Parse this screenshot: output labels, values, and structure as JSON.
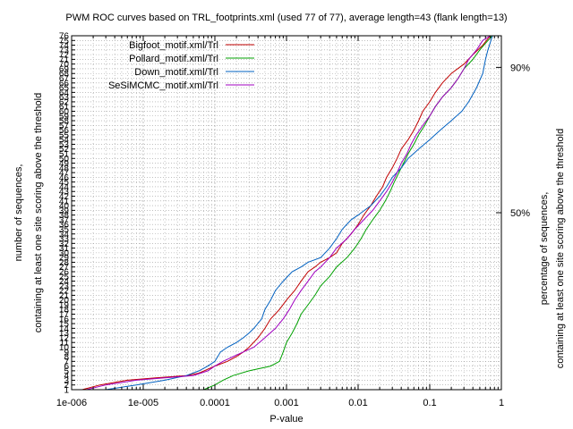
{
  "chart_data": {
    "type": "line",
    "title": "PWM ROC curves based on TRL_footprints.xml (used 77 of 77), average length=43 (flank length=13)",
    "xlabel": "P-value",
    "ylabel_line1": "number of sequences,",
    "ylabel_line2": "containing at least one site scoring above the threshold",
    "y2label_line1": "percentage of sequences,",
    "y2label_line2": "containing at least one site scoring above the threshold",
    "x_scale": "log",
    "xlim": [
      1e-06,
      1
    ],
    "ylim": [
      1,
      76
    ],
    "x_ticks": [
      "1e-006",
      "1e-005",
      "0.0001",
      "0.001",
      "0.01",
      "0.1",
      "1"
    ],
    "y_ticks": [
      "1",
      "2",
      "3",
      "4",
      "5",
      "6",
      "7",
      "8",
      "9",
      "10",
      "11",
      "12",
      "13",
      "14",
      "15",
      "16",
      "17",
      "18",
      "19",
      "20",
      "21",
      "22",
      "23",
      "24",
      "25",
      "26",
      "27",
      "28",
      "29",
      "30",
      "31",
      "32",
      "33",
      "34",
      "35",
      "36",
      "37",
      "38",
      "39",
      "40",
      "41",
      "42",
      "43",
      "44",
      "45",
      "46",
      "47",
      "48",
      "49",
      "50",
      "51",
      "52",
      "53",
      "54",
      "55",
      "56",
      "57",
      "58",
      "59",
      "60",
      "61",
      "62",
      "63",
      "64",
      "65",
      "66",
      "67",
      "68",
      "69",
      "70",
      "71",
      "72",
      "73",
      "74",
      "75",
      "76"
    ],
    "y2_ticks": [
      {
        "label": "50%",
        "value": 38.5
      },
      {
        "label": "90%",
        "value": 69.3
      }
    ],
    "grid": true,
    "legend_position": "top-left",
    "series": [
      {
        "name": "Bigfoot_motif.xml/Trl",
        "color": "#c00000",
        "points": [
          [
            1.4e-06,
            1
          ],
          [
            2.5e-06,
            2
          ],
          [
            6e-06,
            3
          ],
          [
            1.5e-05,
            3.5
          ],
          [
            4e-05,
            4
          ],
          [
            6e-05,
            4.5
          ],
          [
            0.0001,
            6
          ],
          [
            0.00015,
            7
          ],
          [
            0.0002,
            8
          ],
          [
            0.00025,
            9
          ],
          [
            0.0003,
            10
          ],
          [
            0.0004,
            12
          ],
          [
            0.0005,
            14
          ],
          [
            0.0006,
            16
          ],
          [
            0.0008,
            18
          ],
          [
            0.001,
            20
          ],
          [
            0.0013,
            22
          ],
          [
            0.0016,
            24
          ],
          [
            0.002,
            26
          ],
          [
            0.0025,
            27
          ],
          [
            0.003,
            28
          ],
          [
            0.004,
            29
          ],
          [
            0.005,
            30
          ],
          [
            0.006,
            32
          ],
          [
            0.008,
            34
          ],
          [
            0.01,
            36
          ],
          [
            0.012,
            38
          ],
          [
            0.015,
            40
          ],
          [
            0.018,
            42
          ],
          [
            0.022,
            44
          ],
          [
            0.025,
            46
          ],
          [
            0.03,
            48
          ],
          [
            0.035,
            50
          ],
          [
            0.04,
            52
          ],
          [
            0.05,
            54
          ],
          [
            0.06,
            56
          ],
          [
            0.07,
            58
          ],
          [
            0.08,
            60
          ],
          [
            0.1,
            62
          ],
          [
            0.12,
            64
          ],
          [
            0.15,
            66
          ],
          [
            0.2,
            68
          ],
          [
            0.3,
            70
          ],
          [
            0.4,
            72
          ],
          [
            0.55,
            74
          ],
          [
            0.7,
            76
          ]
        ]
      },
      {
        "name": "Pollard_motif.xml/Trl",
        "color": "#00a000",
        "points": [
          [
            7e-05,
            1
          ],
          [
            0.0001,
            2
          ],
          [
            0.00013,
            3
          ],
          [
            0.00018,
            4
          ],
          [
            0.0003,
            5
          ],
          [
            0.0006,
            6
          ],
          [
            0.0008,
            7
          ],
          [
            0.0009,
            9
          ],
          [
            0.001,
            11
          ],
          [
            0.0012,
            13
          ],
          [
            0.0014,
            15
          ],
          [
            0.0016,
            17
          ],
          [
            0.002,
            19
          ],
          [
            0.0025,
            21
          ],
          [
            0.003,
            23
          ],
          [
            0.004,
            25
          ],
          [
            0.005,
            27
          ],
          [
            0.007,
            29
          ],
          [
            0.009,
            31
          ],
          [
            0.011,
            33
          ],
          [
            0.013,
            35
          ],
          [
            0.016,
            37
          ],
          [
            0.02,
            39
          ],
          [
            0.024,
            41
          ],
          [
            0.028,
            43
          ],
          [
            0.032,
            45
          ],
          [
            0.037,
            47
          ],
          [
            0.043,
            49
          ],
          [
            0.05,
            51
          ],
          [
            0.06,
            53
          ],
          [
            0.07,
            55
          ],
          [
            0.085,
            57
          ],
          [
            0.1,
            59
          ],
          [
            0.12,
            61
          ],
          [
            0.15,
            63
          ],
          [
            0.2,
            65
          ],
          [
            0.25,
            67
          ],
          [
            0.3,
            69
          ],
          [
            0.4,
            71
          ],
          [
            0.5,
            73
          ],
          [
            0.65,
            75
          ],
          [
            0.75,
            76
          ]
        ]
      },
      {
        "name": "Down_motif.xml/Trl",
        "color": "#0060c0",
        "points": [
          [
            3e-06,
            1
          ],
          [
            8e-06,
            2
          ],
          [
            2e-05,
            3
          ],
          [
            4e-05,
            4
          ],
          [
            6e-05,
            5
          ],
          [
            8e-05,
            6
          ],
          [
            0.0001,
            7
          ],
          [
            0.00012,
            9
          ],
          [
            0.00015,
            10
          ],
          [
            0.0002,
            11
          ],
          [
            0.00025,
            12
          ],
          [
            0.0003,
            13
          ],
          [
            0.00035,
            14
          ],
          [
            0.00045,
            16
          ],
          [
            0.0005,
            18
          ],
          [
            0.0006,
            20
          ],
          [
            0.0007,
            22
          ],
          [
            0.0009,
            24
          ],
          [
            0.0012,
            26
          ],
          [
            0.0016,
            27
          ],
          [
            0.002,
            28
          ],
          [
            0.003,
            29
          ],
          [
            0.004,
            31
          ],
          [
            0.005,
            33
          ],
          [
            0.006,
            35
          ],
          [
            0.008,
            37
          ],
          [
            0.01,
            38
          ],
          [
            0.015,
            40
          ],
          [
            0.02,
            42
          ],
          [
            0.025,
            44
          ],
          [
            0.03,
            46
          ],
          [
            0.04,
            48
          ],
          [
            0.05,
            50
          ],
          [
            0.07,
            52
          ],
          [
            0.1,
            54
          ],
          [
            0.14,
            56
          ],
          [
            0.2,
            58
          ],
          [
            0.28,
            60
          ],
          [
            0.35,
            62
          ],
          [
            0.45,
            65
          ],
          [
            0.55,
            68
          ],
          [
            0.6,
            71
          ],
          [
            0.65,
            73
          ],
          [
            0.75,
            76
          ]
        ]
      },
      {
        "name": "SeSiMCMC_motif.xml/Trl",
        "color": "#a000c0",
        "points": [
          [
            1.6e-06,
            1
          ],
          [
            3e-06,
            2
          ],
          [
            8e-06,
            3
          ],
          [
            2e-05,
            3.5
          ],
          [
            5e-05,
            4
          ],
          [
            8e-05,
            5
          ],
          [
            0.0001,
            6
          ],
          [
            0.00013,
            7
          ],
          [
            0.00018,
            8
          ],
          [
            0.00025,
            9
          ],
          [
            0.00035,
            10
          ],
          [
            0.0005,
            12
          ],
          [
            0.0007,
            14
          ],
          [
            0.0009,
            16
          ],
          [
            0.0011,
            18
          ],
          [
            0.0013,
            20
          ],
          [
            0.0016,
            22
          ],
          [
            0.002,
            24
          ],
          [
            0.0025,
            26
          ],
          [
            0.003,
            27
          ],
          [
            0.004,
            29
          ],
          [
            0.005,
            31
          ],
          [
            0.007,
            33
          ],
          [
            0.009,
            35
          ],
          [
            0.012,
            37
          ],
          [
            0.016,
            39
          ],
          [
            0.02,
            41
          ],
          [
            0.025,
            43
          ],
          [
            0.03,
            45
          ],
          [
            0.035,
            47
          ],
          [
            0.04,
            49
          ],
          [
            0.048,
            51
          ],
          [
            0.055,
            53
          ],
          [
            0.065,
            55
          ],
          [
            0.08,
            57
          ],
          [
            0.1,
            59
          ],
          [
            0.12,
            61
          ],
          [
            0.15,
            63
          ],
          [
            0.2,
            65
          ],
          [
            0.25,
            67
          ],
          [
            0.3,
            69
          ],
          [
            0.35,
            71
          ],
          [
            0.45,
            73
          ],
          [
            0.55,
            75
          ],
          [
            0.7,
            76
          ]
        ]
      }
    ]
  }
}
